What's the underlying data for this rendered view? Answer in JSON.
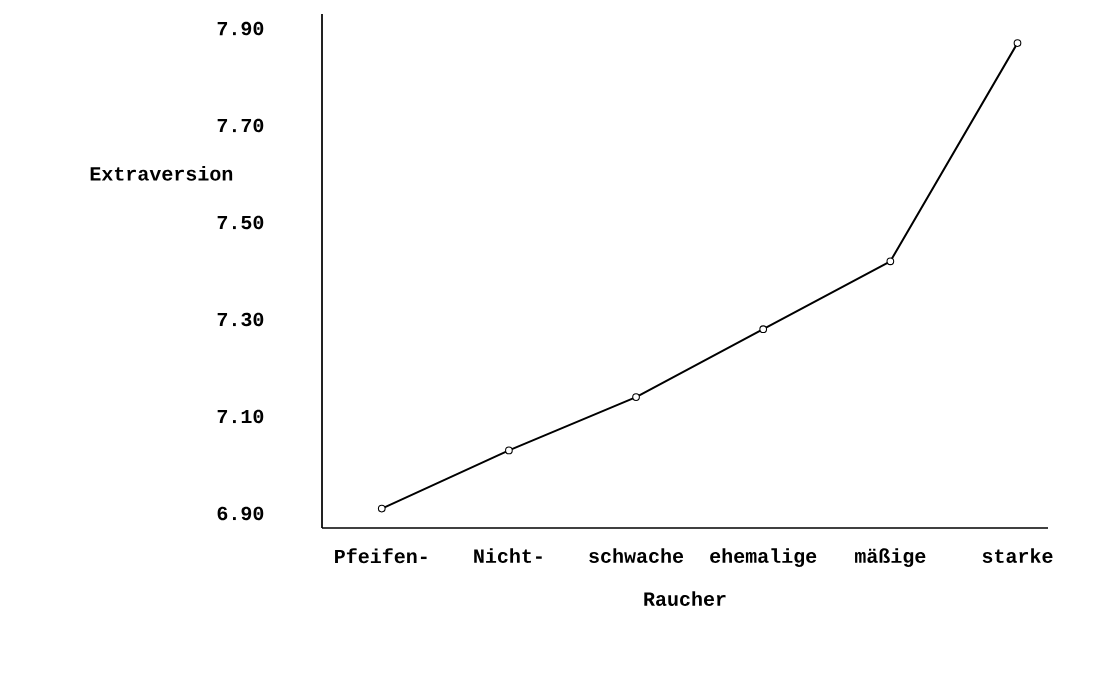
{
  "chart_data": {
    "type": "line",
    "xlabel": "Raucher",
    "ylabel": "Extraversion",
    "categories": [
      "Pfeifen-",
      "Nicht-",
      "schwache",
      "ehemalige",
      "mäßige",
      "starke"
    ],
    "values": [
      6.91,
      7.03,
      7.14,
      7.28,
      7.42,
      7.87
    ],
    "color": "#000000",
    "marker": "circle",
    "line_style": "solid",
    "ylim": [
      6.87,
      7.93
    ],
    "yticks": [
      {
        "value": 6.9,
        "label": "6.90"
      },
      {
        "value": 7.1,
        "label": "7.10"
      },
      {
        "value": 7.3,
        "label": "7.30"
      },
      {
        "value": 7.5,
        "label": "7.50"
      },
      {
        "value": 7.7,
        "label": "7.70"
      },
      {
        "value": 7.9,
        "label": "7.90"
      }
    ],
    "grid": false
  }
}
